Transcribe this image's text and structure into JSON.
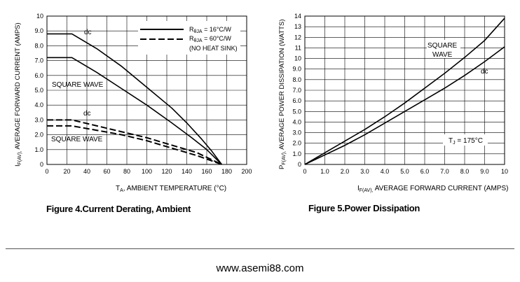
{
  "chart_data": [
    {
      "type": "line",
      "title": "",
      "caption": "Figure 4.Current  Derating, Ambient",
      "xlabel": "TA, AMBIENT TEMPERATURE (°C)",
      "ylabel": "IF(AV), AVERAGE FORWARD CURRENT (AMPS)",
      "xlim": [
        0,
        200
      ],
      "ylim": [
        0,
        10
      ],
      "xticks": [
        "0",
        "20",
        "40",
        "60",
        "80",
        "100",
        "120",
        "140",
        "160",
        "180",
        "200"
      ],
      "yticks": [
        "0",
        "1.0",
        "2.0",
        "3.0",
        "4.0",
        "5.0",
        "6.0",
        "7.0",
        "8.0",
        "9.0",
        "10"
      ],
      "grid": true,
      "legend_position": "top-right",
      "legend": [
        {
          "label": "RθJA = 16°C/W",
          "style": "solid"
        },
        {
          "label": "RθJA = 60°C/W",
          "style": "dashed"
        },
        {
          "label": "(NO HEAT SINK)",
          "style": "note"
        }
      ],
      "series": [
        {
          "name": "dc",
          "group": "RθJA = 16°C/W",
          "style": "solid",
          "x": [
            0,
            25,
            50,
            75,
            100,
            125,
            140,
            155,
            165,
            175
          ],
          "y": [
            8.8,
            8.8,
            7.8,
            6.6,
            5.2,
            3.8,
            2.8,
            1.7,
            0.9,
            0
          ]
        },
        {
          "name": "SQUARE WAVE",
          "group": "RθJA = 16°C/W",
          "style": "solid",
          "x": [
            0,
            25,
            50,
            75,
            100,
            125,
            145,
            160,
            175
          ],
          "y": [
            7.2,
            7.2,
            6.2,
            5.1,
            4.0,
            2.8,
            1.8,
            1.0,
            0
          ]
        },
        {
          "name": "dc",
          "group": "RθJA = 60°C/W",
          "style": "dashed",
          "x": [
            0,
            25,
            50,
            75,
            100,
            125,
            150,
            175
          ],
          "y": [
            3.0,
            3.0,
            2.6,
            2.2,
            1.8,
            1.3,
            0.8,
            0
          ]
        },
        {
          "name": "SQUARE WAVE",
          "group": "RθJA = 60°C/W",
          "style": "dashed",
          "x": [
            0,
            25,
            50,
            75,
            100,
            125,
            150,
            175
          ],
          "y": [
            2.6,
            2.6,
            2.3,
            2.0,
            1.6,
            1.1,
            0.6,
            0
          ]
        }
      ]
    },
    {
      "type": "line",
      "title": "",
      "caption": "Figure 5.Power  Dissipation",
      "xlabel": "IF(AV), AVERAGE FORWARD CURRENT (AMPS)",
      "ylabel": "PF(AV), AVERAGE POWER DISSIPATION (WATTS)",
      "xlim": [
        0,
        10
      ],
      "ylim": [
        0,
        14
      ],
      "xticks": [
        "0",
        "1.0",
        "2.0",
        "3.0",
        "4.0",
        "5.0",
        "6.0",
        "7.0",
        "8.0",
        "9.0",
        "10"
      ],
      "yticks": [
        "0",
        "1.0",
        "2.0",
        "3.0",
        "4.0",
        "5.0",
        "6.0",
        "7.0",
        "8.0",
        "9.0",
        "10",
        "11",
        "12",
        "13",
        "14"
      ],
      "grid": true,
      "annotation": "TJ = 175°C",
      "series": [
        {
          "name": "SQUARE WAVE",
          "style": "solid",
          "x": [
            0,
            1,
            2,
            3,
            4,
            5,
            6,
            7,
            8,
            9,
            10
          ],
          "y": [
            0,
            1.1,
            2.2,
            3.3,
            4.5,
            5.8,
            7.2,
            8.6,
            10.1,
            11.7,
            13.8
          ]
        },
        {
          "name": "dc",
          "style": "solid",
          "x": [
            0,
            1,
            2,
            3,
            4,
            5,
            6,
            7,
            8,
            9,
            10
          ],
          "y": [
            0,
            0.9,
            1.8,
            2.8,
            3.9,
            5.0,
            6.1,
            7.2,
            8.4,
            9.7,
            11.1
          ]
        }
      ]
    }
  ],
  "footer": {
    "url": "www.asemi88.com"
  }
}
